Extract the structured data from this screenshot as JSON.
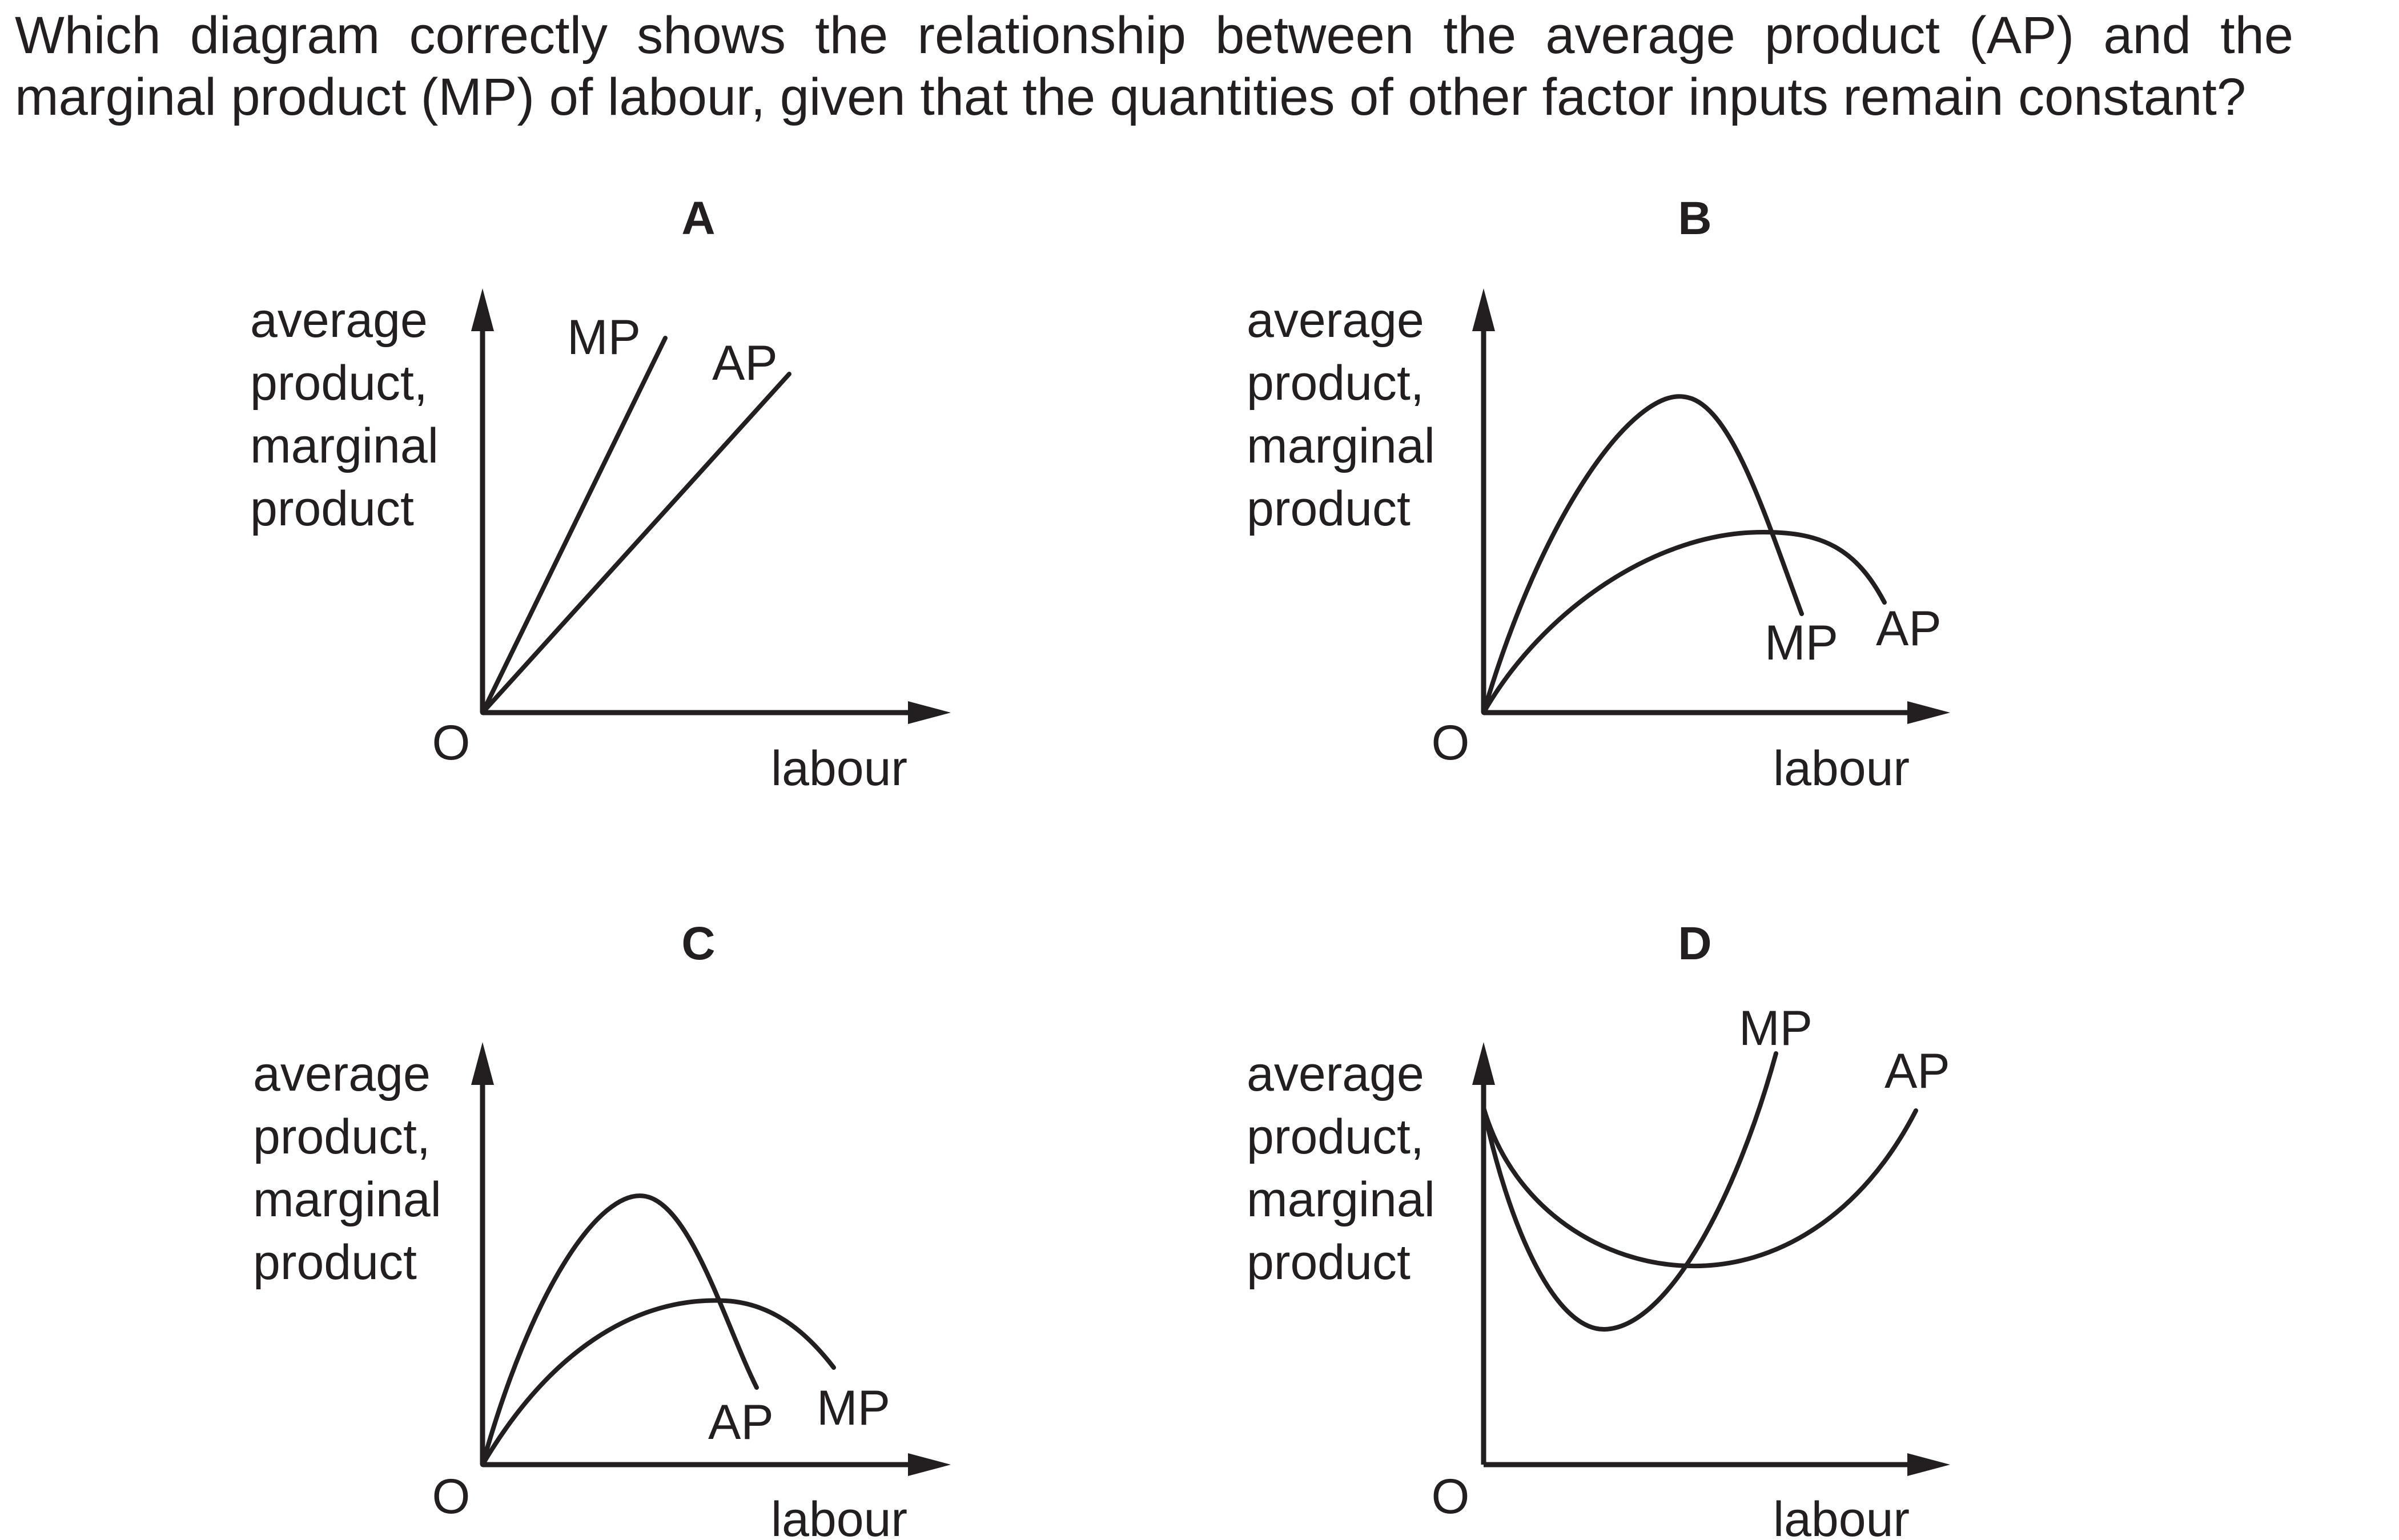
{
  "question": "Which diagram correctly shows the relationship between the average product (AP) and the marginal product (MP) of labour, given that the quantities of other factor inputs remain constant?",
  "panels": [
    {
      "letter": "A",
      "y_axis_label": [
        "average",
        "product,",
        "marginal",
        "product"
      ],
      "x_axis_label": "labour",
      "origin_label": "O",
      "curves": [
        {
          "label": "MP",
          "shape": "straight line rising steeply from origin"
        },
        {
          "label": "AP",
          "shape": "straight line rising less steeply from origin"
        }
      ]
    },
    {
      "letter": "B",
      "y_axis_label": [
        "average",
        "product,",
        "marginal",
        "product"
      ],
      "x_axis_label": "labour",
      "origin_label": "O",
      "curves": [
        {
          "label": "MP",
          "shape": "rises to a high peak then falls, cutting AP at AP's maximum"
        },
        {
          "label": "AP",
          "shape": "rises to a lower, flatter peak then falls"
        }
      ]
    },
    {
      "letter": "C",
      "y_axis_label": [
        "average",
        "product,",
        "marginal",
        "product"
      ],
      "x_axis_label": "labour",
      "origin_label": "O",
      "curves": [
        {
          "label": "AP",
          "shape": "rises to a high peak then falls steeply"
        },
        {
          "label": "MP",
          "shape": "rises to a lower, flatter peak then falls"
        }
      ]
    },
    {
      "letter": "D",
      "y_axis_label": [
        "average",
        "product,",
        "marginal",
        "product"
      ],
      "x_axis_label": "labour",
      "origin_label": "O",
      "curves": [
        {
          "label": "MP",
          "shape": "falls to a deep minimum then rises steeply"
        },
        {
          "label": "AP",
          "shape": "falls to a shallow minimum then rises"
        }
      ]
    }
  ]
}
